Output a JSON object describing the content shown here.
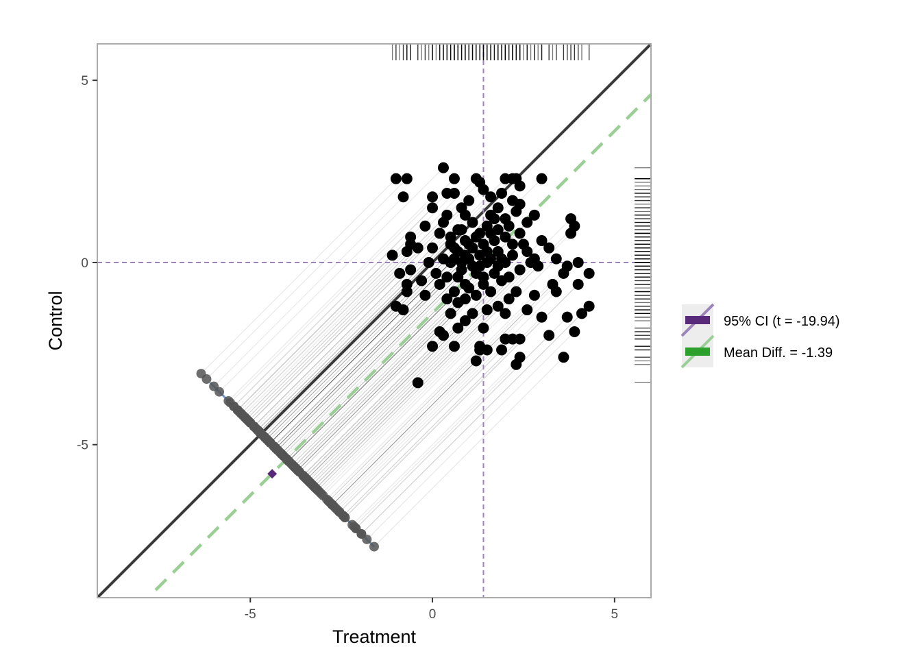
{
  "chart_data": {
    "type": "scatter",
    "title": "",
    "xlabel": "Treatment",
    "ylabel": "Control",
    "xlim": [
      -9.2,
      6.0
    ],
    "ylim": [
      -9.2,
      6.0
    ],
    "x_ticks": [
      -5,
      0,
      5
    ],
    "y_ticks": [
      -5,
      0,
      5
    ],
    "x_tick_labels": [
      "-5",
      "0",
      "5"
    ],
    "y_tick_labels": [
      "-5",
      "0",
      "5"
    ],
    "grid": false,
    "reference_lines": {
      "identity_line": {
        "intercept": 0,
        "slope": 1,
        "color": "#3a3a3a"
      },
      "mean_diff_line": {
        "intercept": -1.39,
        "slope": 1,
        "color": "#99cf95",
        "dash": "long"
      },
      "treatment_mean_vline": {
        "x": 1.4,
        "color": "#9a84b8",
        "dash": "short"
      },
      "control_mean_hline": {
        "y": 0.0,
        "color": "#9a84b8",
        "dash": "short"
      }
    },
    "difference_axis": {
      "color": "#6f95c7",
      "from": [
        -6.1,
        -3.3
      ],
      "to": [
        -1.6,
        -7.8
      ]
    },
    "ci_marker": {
      "x": -4.4,
      "y": -5.8,
      "color": "#5a2a7a"
    },
    "series": [
      {
        "name": "",
        "color": "#000000",
        "points": [
          [
            -0.4,
            -3.3
          ],
          [
            -1.0,
            -1.2
          ],
          [
            -0.8,
            -1.3
          ],
          [
            -1.1,
            0.2
          ],
          [
            -0.9,
            -0.3
          ],
          [
            -0.7,
            -0.6
          ],
          [
            -0.6,
            -0.2
          ],
          [
            -0.7,
            0.3
          ],
          [
            -0.6,
            0.5
          ],
          [
            -0.6,
            0.7
          ],
          [
            -0.4,
            0.4
          ],
          [
            -0.3,
            -0.5
          ],
          [
            -0.2,
            -0.9
          ],
          [
            -0.1,
            0.0
          ],
          [
            0.0,
            0.4
          ],
          [
            0.1,
            -0.3
          ],
          [
            0.2,
            0.8
          ],
          [
            0.3,
            1.1
          ],
          [
            0.4,
            1.3
          ],
          [
            0.5,
            0.5
          ],
          [
            -0.7,
            -0.8
          ],
          [
            -0.2,
            1.0
          ],
          [
            -1.0,
            2.3
          ],
          [
            -0.7,
            2.3
          ],
          [
            -0.8,
            1.8
          ],
          [
            0.3,
            2.6
          ],
          [
            0.6,
            2.3
          ],
          [
            0.4,
            1.9
          ],
          [
            0.0,
            1.8
          ],
          [
            0.0,
            1.5
          ],
          [
            0.6,
            1.9
          ],
          [
            0.8,
            1.5
          ],
          [
            1.0,
            1.7
          ],
          [
            1.2,
            2.3
          ],
          [
            1.3,
            2.2
          ],
          [
            1.4,
            2.0
          ],
          [
            1.6,
            1.8
          ],
          [
            1.9,
            1.9
          ],
          [
            2.0,
            2.3
          ],
          [
            2.2,
            2.3
          ],
          [
            2.3,
            2.3
          ],
          [
            2.4,
            2.1
          ],
          [
            2.2,
            1.7
          ],
          [
            2.4,
            1.6
          ],
          [
            1.6,
            1.3
          ],
          [
            1.8,
            1.5
          ],
          [
            2.0,
            1.2
          ],
          [
            2.3,
            1.4
          ],
          [
            2.6,
            1.1
          ],
          [
            2.8,
            1.3
          ],
          [
            3.0,
            2.3
          ],
          [
            3.0,
            0.6
          ],
          [
            2.5,
            0.5
          ],
          [
            2.7,
            0.0
          ],
          [
            2.9,
            -0.1
          ],
          [
            3.2,
            0.4
          ],
          [
            3.4,
            0.1
          ],
          [
            3.7,
            -0.1
          ],
          [
            3.6,
            -0.3
          ],
          [
            3.8,
            0.8
          ],
          [
            3.8,
            1.2
          ],
          [
            3.9,
            1.0
          ],
          [
            4.0,
            0.0
          ],
          [
            4.3,
            -0.3
          ],
          [
            4.0,
            -0.6
          ],
          [
            3.3,
            -0.6
          ],
          [
            3.4,
            -0.8
          ],
          [
            2.8,
            -0.9
          ],
          [
            2.6,
            -1.3
          ],
          [
            3.7,
            -1.5
          ],
          [
            3.9,
            -1.9
          ],
          [
            4.1,
            -1.4
          ],
          [
            4.3,
            -1.2
          ],
          [
            3.6,
            -2.6
          ],
          [
            3.2,
            -2.0
          ],
          [
            3.0,
            -1.5
          ],
          [
            2.4,
            -2.1
          ],
          [
            2.2,
            -2.1
          ],
          [
            2.0,
            -2.1
          ],
          [
            2.4,
            -2.6
          ],
          [
            2.3,
            -2.8
          ],
          [
            1.9,
            -2.4
          ],
          [
            1.5,
            -2.4
          ],
          [
            1.3,
            -2.3
          ],
          [
            1.2,
            -2.7
          ],
          [
            1.3,
            -2.4
          ],
          [
            1.4,
            -1.8
          ],
          [
            0.9,
            -1.6
          ],
          [
            0.7,
            -1.8
          ],
          [
            0.6,
            -2.3
          ],
          [
            0.3,
            -2.0
          ],
          [
            0.2,
            -1.9
          ],
          [
            0.0,
            -2.3
          ],
          [
            0.5,
            -1.4
          ],
          [
            0.7,
            -1.1
          ],
          [
            0.9,
            -0.6
          ],
          [
            1.1,
            -1.4
          ],
          [
            1.5,
            -1.3
          ],
          [
            1.8,
            -1.2
          ],
          [
            2.0,
            -1.4
          ],
          [
            2.1,
            -1.0
          ],
          [
            2.3,
            -0.8
          ],
          [
            1.9,
            -0.5
          ],
          [
            1.7,
            -0.3
          ],
          [
            1.5,
            0.0
          ],
          [
            1.3,
            0.2
          ],
          [
            1.1,
            0.4
          ],
          [
            0.9,
            0.6
          ],
          [
            0.7,
            0.9
          ],
          [
            0.5,
            0.0
          ],
          [
            0.4,
            -0.4
          ],
          [
            0.6,
            -0.8
          ],
          [
            0.8,
            -0.2
          ],
          [
            1.0,
            0.1
          ],
          [
            1.2,
            -0.3
          ],
          [
            1.4,
            0.5
          ],
          [
            1.6,
            0.8
          ],
          [
            1.8,
            0.3
          ],
          [
            2.0,
            0.7
          ],
          [
            2.2,
            0.2
          ],
          [
            2.4,
            -0.2
          ],
          [
            2.1,
            -0.4
          ],
          [
            1.9,
            0.1
          ],
          [
            1.7,
            0.6
          ],
          [
            1.5,
            1.0
          ],
          [
            1.3,
            0.8
          ],
          [
            1.1,
            1.1
          ],
          [
            0.9,
            1.3
          ],
          [
            0.7,
            0.3
          ],
          [
            0.5,
            0.7
          ],
          [
            0.3,
            0.1
          ],
          [
            0.2,
            -0.6
          ],
          [
            0.4,
            -1.0
          ],
          [
            0.6,
            0.4
          ],
          [
            0.8,
            0.9
          ],
          [
            1.0,
            -0.7
          ],
          [
            1.2,
            -0.9
          ],
          [
            1.4,
            -0.6
          ],
          [
            1.6,
            -0.8
          ],
          [
            1.8,
            -0.1
          ],
          [
            2.0,
            0.0
          ],
          [
            2.2,
            0.5
          ],
          [
            2.4,
            0.8
          ],
          [
            2.6,
            0.3
          ],
          [
            2.8,
            0.1
          ],
          [
            1.0,
            0.5
          ],
          [
            1.1,
            -0.1
          ],
          [
            0.9,
            0.2
          ],
          [
            1.3,
            -0.1
          ],
          [
            1.5,
            0.3
          ],
          [
            0.8,
            0.0
          ],
          [
            0.6,
            0.1
          ],
          [
            0.7,
            -0.4
          ],
          [
            1.2,
            0.7
          ],
          [
            1.4,
            -0.4
          ],
          [
            1.6,
            0.1
          ],
          [
            1.8,
            0.9
          ],
          [
            2.1,
            1.0
          ],
          [
            1.7,
            1.2
          ],
          [
            0.9,
            -1.0
          ]
        ]
      }
    ],
    "projected_points_color": "#555555",
    "rug": {
      "top_x_range": [
        -1.0,
        4.3
      ],
      "right_y_range": [
        -3.3,
        2.5
      ]
    },
    "legend": {
      "placement": "right",
      "entries": [
        {
          "label": "95% CI (t = -19.94)",
          "color": "#5a2a7a",
          "line_color": "#9a84b8"
        },
        {
          "label": "Mean Diff. = -1.39",
          "color": "#2ca02c",
          "line_color": "#99cf95"
        }
      ]
    }
  }
}
